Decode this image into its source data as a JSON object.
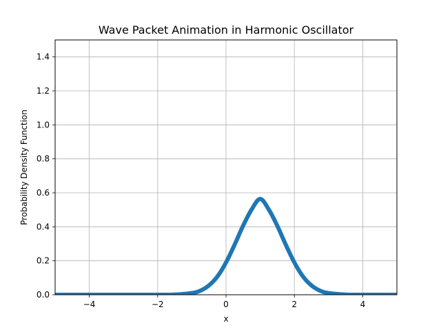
{
  "chart_data": {
    "type": "line",
    "title": "Wave Packet Animation in Harmonic Oscillator",
    "xlabel": "x",
    "ylabel": "Probability Density Function",
    "xlim": [
      -5,
      5
    ],
    "ylim": [
      0,
      1.5
    ],
    "xticks": [
      -4,
      -2,
      0,
      2,
      4
    ],
    "xtick_labels": [
      "−4",
      "−2",
      "0",
      "2",
      "4"
    ],
    "yticks": [
      0.0,
      0.2,
      0.4,
      0.6,
      0.8,
      1.0,
      1.2,
      1.4
    ],
    "ytick_labels": [
      "0.0",
      "0.2",
      "0.4",
      "0.6",
      "0.8",
      "1.0",
      "1.2",
      "1.4"
    ],
    "grid": true,
    "series": [
      {
        "color": "#1f77b4",
        "x": [
          -5.0,
          -4.0,
          -3.0,
          -2.0,
          -1.5,
          -1.0,
          -0.75,
          -0.5,
          -0.25,
          0.0,
          0.25,
          0.5,
          0.75,
          1.0,
          1.25,
          1.5,
          1.75,
          2.0,
          2.25,
          2.5,
          2.75,
          3.0,
          3.5,
          4.0,
          5.0
        ],
        "y": [
          0.0,
          0.0,
          0.0,
          0.0,
          0.001,
          0.01,
          0.024,
          0.055,
          0.108,
          0.19,
          0.294,
          0.406,
          0.502,
          0.564,
          0.502,
          0.406,
          0.294,
          0.19,
          0.108,
          0.055,
          0.024,
          0.01,
          0.001,
          0.0,
          0.0
        ]
      }
    ]
  }
}
